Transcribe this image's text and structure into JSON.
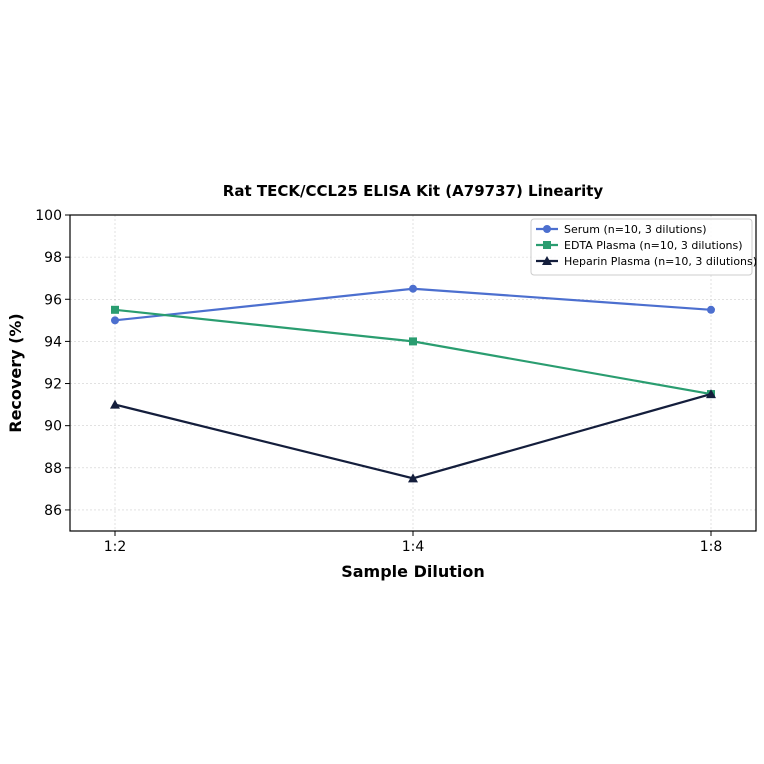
{
  "chart_data": {
    "type": "line",
    "title": "Rat TECK/CCL25 ELISA Kit (A79737) Linearity",
    "xlabel": "Sample Dilution",
    "ylabel": "Recovery (%)",
    "categories": [
      "1:2",
      "1:4",
      "1:8"
    ],
    "ylim": [
      85,
      100
    ],
    "yticks": [
      86,
      88,
      90,
      92,
      94,
      96,
      98,
      100
    ],
    "grid": true,
    "legend_position": "top-right",
    "series": [
      {
        "name": "Serum (n=10, 3 dilutions)",
        "values": [
          95.0,
          96.5,
          95.5
        ],
        "color": "#4c6fcf",
        "marker": "circle"
      },
      {
        "name": "EDTA Plasma (n=10, 3 dilutions)",
        "values": [
          95.5,
          94.0,
          91.5
        ],
        "color": "#2a9d70",
        "marker": "square"
      },
      {
        "name": "Heparin Plasma (n=10, 3 dilutions)",
        "values": [
          91.0,
          87.5,
          91.5
        ],
        "color": "#141e3c",
        "marker": "triangle"
      }
    ]
  }
}
